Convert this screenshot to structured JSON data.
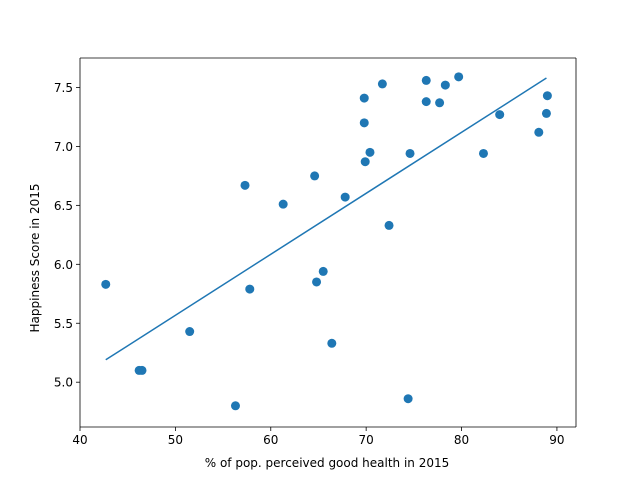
{
  "chart_data": {
    "type": "scatter",
    "title": "",
    "xlabel": "% of pop. perceived good health in 2015",
    "ylabel": "Happiness Score in 2015",
    "xlim": [
      40,
      92
    ],
    "ylim": [
      4.62,
      7.75
    ],
    "xticks": [
      40,
      50,
      60,
      70,
      80,
      90
    ],
    "xtick_labels": [
      "40",
      "50",
      "60",
      "70",
      "80",
      "90"
    ],
    "yticks": [
      5.0,
      5.5,
      6.0,
      6.5,
      7.0,
      7.5
    ],
    "ytick_labels": [
      "5.0",
      "5.5",
      "6.0",
      "6.5",
      "7.0",
      "7.5"
    ],
    "grid": false,
    "point_color": "#1f77b4",
    "line_color": "#1f77b4",
    "points": [
      {
        "x": 42.7,
        "y": 5.83
      },
      {
        "x": 46.2,
        "y": 5.1
      },
      {
        "x": 46.5,
        "y": 5.1
      },
      {
        "x": 51.5,
        "y": 5.43
      },
      {
        "x": 56.3,
        "y": 4.8
      },
      {
        "x": 57.3,
        "y": 6.67
      },
      {
        "x": 57.8,
        "y": 5.79
      },
      {
        "x": 61.3,
        "y": 6.51
      },
      {
        "x": 64.6,
        "y": 6.75
      },
      {
        "x": 64.8,
        "y": 5.85
      },
      {
        "x": 65.5,
        "y": 5.94
      },
      {
        "x": 66.4,
        "y": 5.33
      },
      {
        "x": 67.8,
        "y": 6.57
      },
      {
        "x": 69.8,
        "y": 7.41
      },
      {
        "x": 69.8,
        "y": 7.2
      },
      {
        "x": 69.9,
        "y": 6.87
      },
      {
        "x": 70.4,
        "y": 6.95
      },
      {
        "x": 71.7,
        "y": 7.53
      },
      {
        "x": 72.4,
        "y": 6.33
      },
      {
        "x": 74.4,
        "y": 4.86
      },
      {
        "x": 74.6,
        "y": 6.94
      },
      {
        "x": 76.3,
        "y": 7.56
      },
      {
        "x": 76.3,
        "y": 7.38
      },
      {
        "x": 77.7,
        "y": 7.37
      },
      {
        "x": 78.3,
        "y": 7.52
      },
      {
        "x": 79.7,
        "y": 7.59
      },
      {
        "x": 82.3,
        "y": 6.94
      },
      {
        "x": 84.0,
        "y": 7.27
      },
      {
        "x": 88.1,
        "y": 7.12
      },
      {
        "x": 88.9,
        "y": 7.28
      },
      {
        "x": 89.0,
        "y": 7.43
      }
    ],
    "trendline": {
      "type": "linear",
      "x_start": 42.7,
      "y_start": 5.19,
      "x_end": 88.9,
      "y_end": 7.58
    }
  }
}
